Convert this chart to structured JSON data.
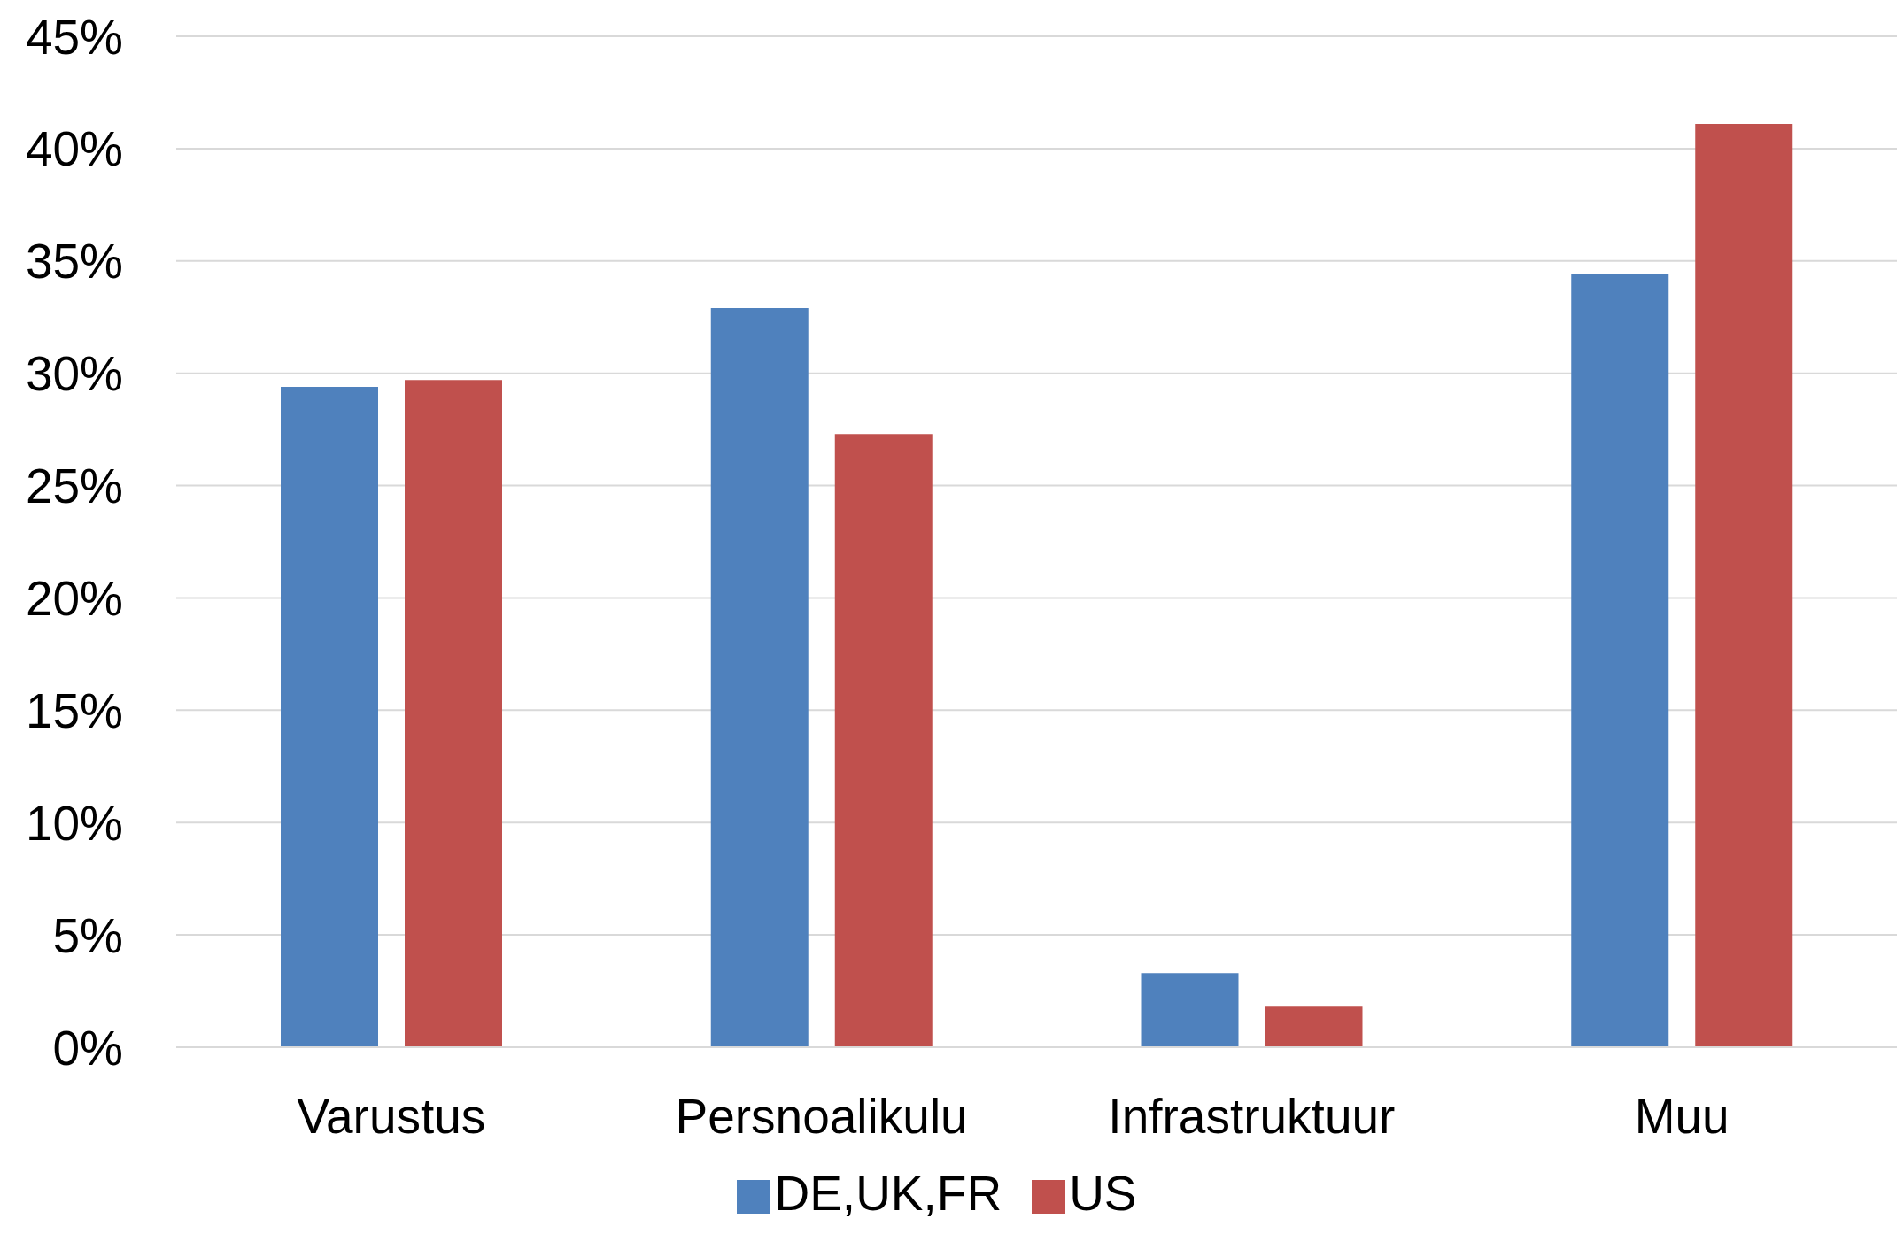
{
  "chart_data": {
    "type": "bar",
    "categories": [
      "Varustus",
      "Persnoalikulu",
      "Infrastruktuur",
      "Muu"
    ],
    "series": [
      {
        "name": "DE,UK,FR",
        "color": "#4f81bd",
        "values": [
          29.4,
          32.9,
          3.3,
          34.4
        ]
      },
      {
        "name": "US",
        "color": "#c0504d",
        "values": [
          29.7,
          27.3,
          1.8,
          41.1
        ]
      }
    ],
    "ylim": [
      0,
      45
    ],
    "yticks": [
      {
        "value": 0,
        "label": "0%"
      },
      {
        "value": 5,
        "label": "5%"
      },
      {
        "value": 10,
        "label": "10%"
      },
      {
        "value": 15,
        "label": "15%"
      },
      {
        "value": 20,
        "label": "20%"
      },
      {
        "value": 25,
        "label": "25%"
      },
      {
        "value": 30,
        "label": "30%"
      },
      {
        "value": 35,
        "label": "35%"
      },
      {
        "value": 40,
        "label": "40%"
      },
      {
        "value": 45,
        "label": "45%"
      }
    ],
    "grid": "y",
    "legend": "bottom"
  }
}
